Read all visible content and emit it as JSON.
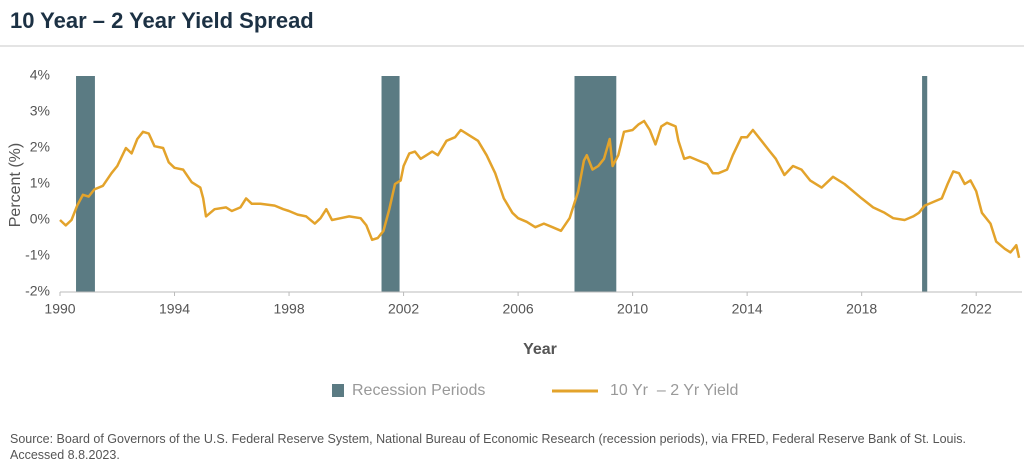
{
  "chart_data": {
    "type": "line",
    "title": "10 Year – 2 Year Yield Spread",
    "xlabel": "Year",
    "ylabel": "Percent (%)",
    "source": "Source: Board of Governors of the U.S. Federal Reserve System, National Bureau of Economic Research (recession periods), via FRED, Federal Reserve Bank of St. Louis. Accessed 8.8.2023.",
    "xlim": [
      1990,
      2023.6
    ],
    "xticks": [
      1990,
      1994,
      1998,
      2002,
      2006,
      2010,
      2014,
      2018,
      2022
    ],
    "ylim": [
      -2,
      4
    ],
    "yticks": [
      {
        "value": -2,
        "label": "-2%"
      },
      {
        "value": -1,
        "label": "-1%"
      },
      {
        "value": 0,
        "label": "0%"
      },
      {
        "value": 1,
        "label": "1%"
      },
      {
        "value": 2,
        "label": "2%"
      },
      {
        "value": 3,
        "label": "3%"
      },
      {
        "value": 4,
        "label": "4%"
      }
    ],
    "grid": false,
    "recessions": {
      "name": "Recession Periods",
      "color": "#5b7b83",
      "periods": [
        [
          1990.56,
          1991.22
        ],
        [
          2001.23,
          2001.86
        ],
        [
          2007.97,
          2009.43
        ],
        [
          2020.11,
          2020.29
        ]
      ]
    },
    "x": [
      1990.0,
      1990.2,
      1990.4,
      1990.6,
      1990.8,
      1991.0,
      1991.2,
      1991.5,
      1991.8,
      1992.0,
      1992.3,
      1992.5,
      1992.7,
      1992.9,
      1993.1,
      1993.3,
      1993.6,
      1993.8,
      1994.0,
      1994.3,
      1994.6,
      1994.9,
      1995.0,
      1995.1,
      1995.4,
      1995.8,
      1996.0,
      1996.3,
      1996.5,
      1996.7,
      1997.0,
      1997.5,
      1997.8,
      1998.0,
      1998.3,
      1998.6,
      1998.9,
      1999.1,
      1999.3,
      1999.5,
      1999.8,
      2000.1,
      2000.5,
      2000.7,
      2000.9,
      2001.1,
      2001.3,
      2001.5,
      2001.7,
      2001.9,
      2002.0,
      2002.2,
      2002.4,
      2002.6,
      2002.8,
      2003.0,
      2003.2,
      2003.5,
      2003.8,
      2004.0,
      2004.3,
      2004.6,
      2004.9,
      2005.2,
      2005.5,
      2005.8,
      2006.0,
      2006.3,
      2006.6,
      2006.9,
      2007.2,
      2007.5,
      2007.8,
      2008.1,
      2008.3,
      2008.4,
      2008.6,
      2008.8,
      2009.0,
      2009.2,
      2009.3,
      2009.5,
      2009.7,
      2010.0,
      2010.2,
      2010.4,
      2010.6,
      2010.8,
      2011.0,
      2011.2,
      2011.5,
      2011.6,
      2011.8,
      2012.0,
      2012.3,
      2012.6,
      2012.8,
      2013.0,
      2013.3,
      2013.5,
      2013.8,
      2014.0,
      2014.2,
      2014.5,
      2014.8,
      2015.0,
      2015.3,
      2015.6,
      2015.9,
      2016.2,
      2016.6,
      2017.0,
      2017.4,
      2017.7,
      2018.0,
      2018.4,
      2018.8,
      2019.1,
      2019.5,
      2019.8,
      2020.0,
      2020.2,
      2020.5,
      2020.8,
      2021.0,
      2021.2,
      2021.4,
      2021.6,
      2021.8,
      2022.0,
      2022.2,
      2022.5,
      2022.7,
      2023.0,
      2023.2,
      2023.4,
      2023.5
    ],
    "series": [
      {
        "name": "10 Yr  – 2 Yr Yield",
        "color": "#e3a32b",
        "values": [
          0.0,
          -0.15,
          0.0,
          0.4,
          0.7,
          0.65,
          0.85,
          0.95,
          1.3,
          1.5,
          2.0,
          1.85,
          2.25,
          2.45,
          2.4,
          2.05,
          2.0,
          1.6,
          1.45,
          1.4,
          1.05,
          0.9,
          0.6,
          0.1,
          0.3,
          0.35,
          0.25,
          0.35,
          0.6,
          0.45,
          0.45,
          0.4,
          0.3,
          0.25,
          0.15,
          0.1,
          -0.1,
          0.05,
          0.3,
          0.0,
          0.05,
          0.1,
          0.05,
          -0.15,
          -0.55,
          -0.5,
          -0.3,
          0.3,
          1.0,
          1.1,
          1.5,
          1.85,
          1.9,
          1.7,
          1.8,
          1.9,
          1.8,
          2.2,
          2.3,
          2.5,
          2.35,
          2.2,
          1.8,
          1.3,
          0.6,
          0.2,
          0.05,
          -0.05,
          -0.2,
          -0.1,
          -0.2,
          -0.3,
          0.05,
          0.8,
          1.65,
          1.8,
          1.4,
          1.5,
          1.7,
          2.25,
          1.5,
          1.8,
          2.45,
          2.5,
          2.65,
          2.75,
          2.5,
          2.1,
          2.6,
          2.7,
          2.6,
          2.2,
          1.7,
          1.75,
          1.65,
          1.55,
          1.3,
          1.3,
          1.4,
          1.8,
          2.3,
          2.3,
          2.5,
          2.2,
          1.9,
          1.7,
          1.25,
          1.5,
          1.4,
          1.1,
          0.9,
          1.2,
          1.0,
          0.8,
          0.6,
          0.35,
          0.2,
          0.05,
          0.0,
          0.1,
          0.2,
          0.4,
          0.5,
          0.6,
          1.0,
          1.35,
          1.3,
          1.0,
          1.1,
          0.8,
          0.2,
          -0.1,
          -0.6,
          -0.8,
          -0.9,
          -0.7,
          -1.05
        ]
      }
    ]
  }
}
